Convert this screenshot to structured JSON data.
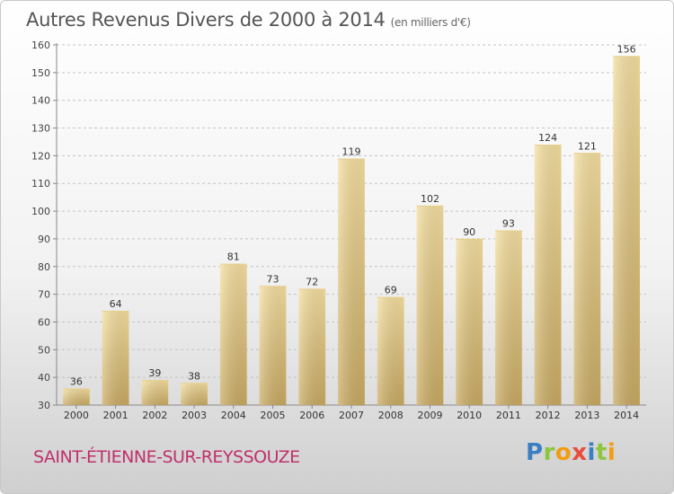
{
  "chart_data": {
    "type": "bar",
    "title": "Autres Revenus Divers de 2000 à 2014",
    "unit": "(en milliers d'€)",
    "categories": [
      "2000",
      "2001",
      "2002",
      "2003",
      "2004",
      "2005",
      "2006",
      "2007",
      "2008",
      "2009",
      "2010",
      "2011",
      "2012",
      "2013",
      "2014"
    ],
    "values": [
      36,
      64,
      39,
      38,
      81,
      73,
      72,
      119,
      69,
      102,
      90,
      93,
      124,
      121,
      156
    ],
    "ylim": [
      30,
      160
    ],
    "yticks": [
      30,
      40,
      50,
      60,
      70,
      80,
      90,
      100,
      110,
      120,
      130,
      140,
      150,
      160
    ],
    "grid": true,
    "bar_color_light": "#f5dfa0",
    "bar_color_dark": "#c9aa62"
  },
  "footer": {
    "commune": "SAINT-ÉTIENNE-SUR-REYSSOUZE",
    "commune_color": "#c0306b"
  },
  "logo": {
    "text": "Proxiti",
    "letters": [
      {
        "ch": "P",
        "color": "#3a7fc4"
      },
      {
        "ch": "r",
        "color": "#8cc63f"
      },
      {
        "ch": "o",
        "color": "#f39c12"
      },
      {
        "ch": "x",
        "color": "#e74c3c"
      },
      {
        "ch": "i",
        "color": "#3a7fc4"
      },
      {
        "ch": "t",
        "color": "#8cc63f"
      },
      {
        "ch": "i",
        "color": "#f39c12"
      }
    ]
  }
}
